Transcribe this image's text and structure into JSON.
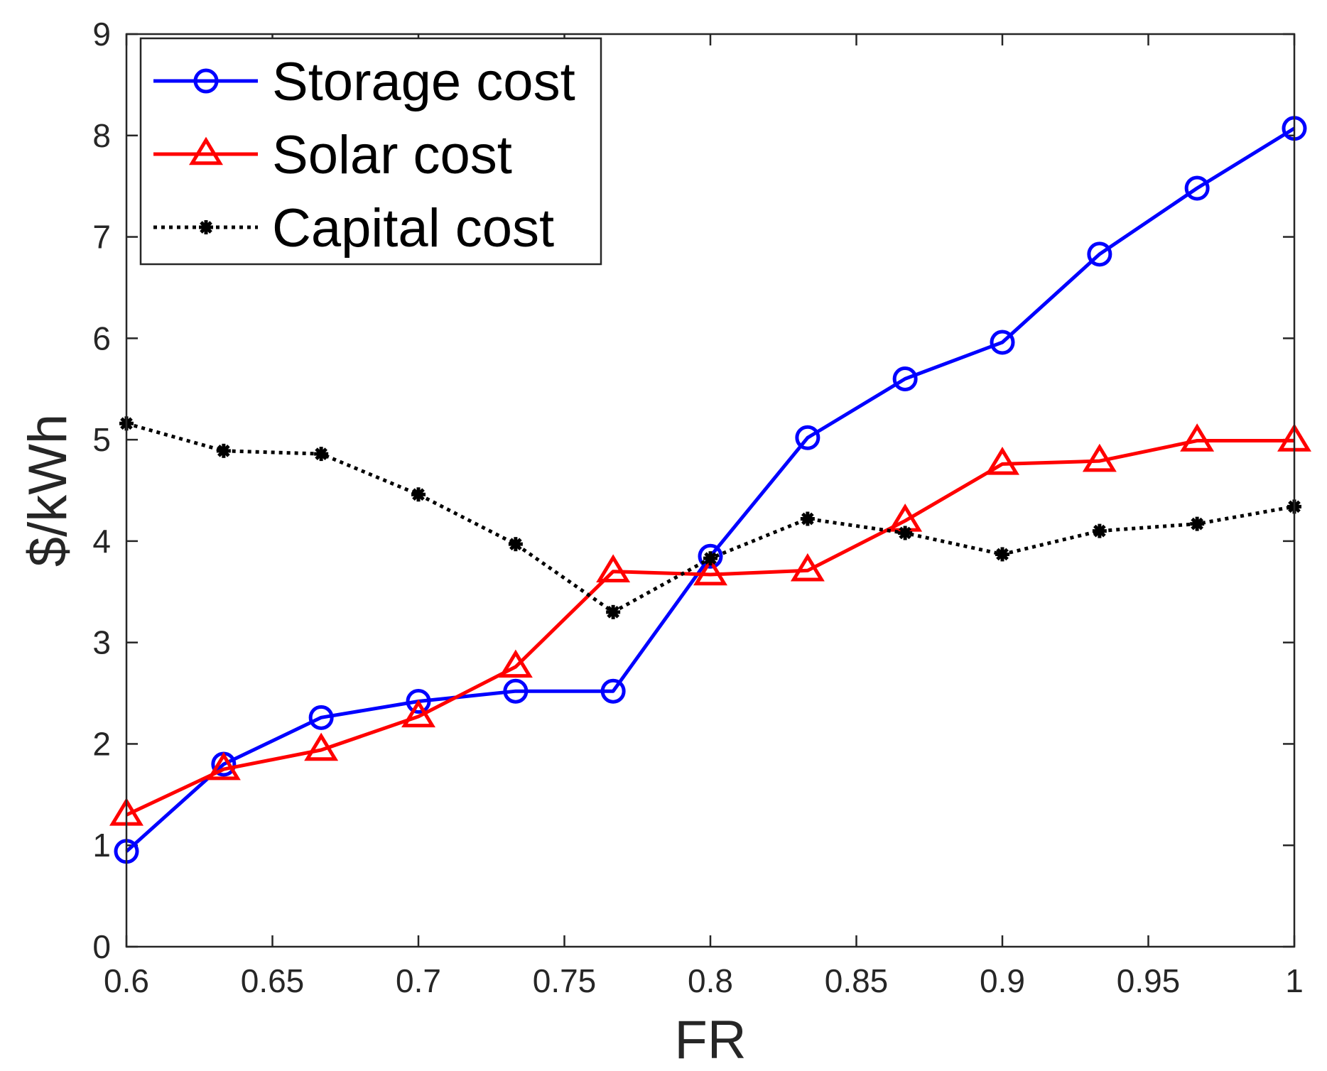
{
  "chart_data": {
    "type": "line",
    "title": "",
    "xlabel": "FR",
    "ylabel": "$/kWh",
    "xlim": [
      0.6,
      1.0
    ],
    "ylim": [
      0,
      9
    ],
    "xticks": [
      0.6,
      0.65,
      0.7,
      0.75,
      0.8,
      0.85,
      0.9,
      0.95,
      1.0
    ],
    "xtick_labels": [
      "0.6",
      "0.65",
      "0.7",
      "0.75",
      "0.8",
      "0.85",
      "0.9",
      "0.95",
      "1"
    ],
    "yticks": [
      0,
      1,
      2,
      3,
      4,
      5,
      6,
      7,
      8,
      9
    ],
    "ytick_labels": [
      "0",
      "1",
      "2",
      "3",
      "4",
      "5",
      "6",
      "7",
      "8",
      "9"
    ],
    "grid": false,
    "legend_position": "top-left",
    "x": [
      0.6,
      0.6333,
      0.6667,
      0.7,
      0.7333,
      0.7667,
      0.8,
      0.8333,
      0.8667,
      0.9,
      0.9333,
      0.9667,
      1.0
    ],
    "series": [
      {
        "name": "Storage cost",
        "color": "#0000ff",
        "line_style": "solid",
        "marker": "circle",
        "values": [
          0.94,
          1.8,
          2.26,
          2.42,
          2.52,
          2.52,
          3.85,
          5.02,
          5.6,
          5.96,
          6.83,
          7.48,
          8.07
        ]
      },
      {
        "name": "Solar cost",
        "color": "#ff0000",
        "line_style": "solid",
        "marker": "triangle",
        "values": [
          1.3,
          1.75,
          1.94,
          2.27,
          2.76,
          3.7,
          3.67,
          3.71,
          4.2,
          4.76,
          4.79,
          4.99,
          4.99
        ]
      },
      {
        "name": "Capital cost",
        "color": "#000000",
        "line_style": "dotted",
        "marker": "asterisk",
        "values": [
          5.16,
          4.89,
          4.86,
          4.46,
          3.97,
          3.3,
          3.83,
          4.22,
          4.08,
          3.87,
          4.1,
          4.17,
          4.34
        ]
      }
    ]
  }
}
